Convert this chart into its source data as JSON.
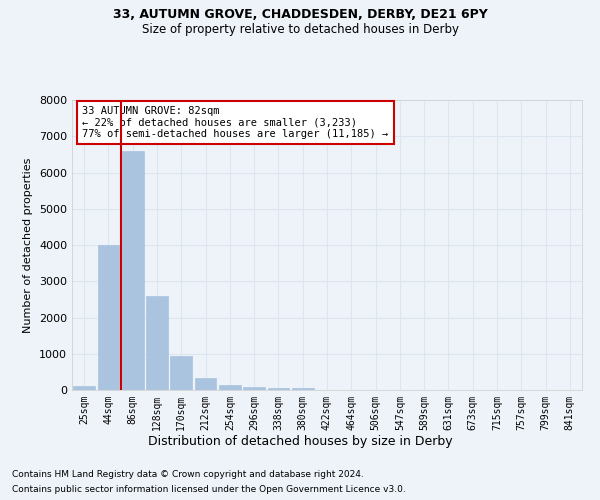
{
  "title1": "33, AUTUMN GROVE, CHADDESDEN, DERBY, DE21 6PY",
  "title2": "Size of property relative to detached houses in Derby",
  "xlabel": "Distribution of detached houses by size in Derby",
  "ylabel": "Number of detached properties",
  "bar_labels": [
    "25sqm",
    "44sqm",
    "86sqm",
    "128sqm",
    "170sqm",
    "212sqm",
    "254sqm",
    "296sqm",
    "338sqm",
    "380sqm",
    "422sqm",
    "464sqm",
    "506sqm",
    "547sqm",
    "589sqm",
    "631sqm",
    "673sqm",
    "715sqm",
    "757sqm",
    "799sqm",
    "841sqm"
  ],
  "bar_values": [
    100,
    4000,
    6600,
    2600,
    950,
    320,
    130,
    90,
    60,
    50,
    0,
    0,
    0,
    0,
    0,
    0,
    0,
    0,
    0,
    0,
    0
  ],
  "bar_color": "#aac4e0",
  "bar_edge_color": "#aac4e0",
  "grid_color": "#dce6f1",
  "vline_color": "#cc0000",
  "annotation_line1": "33 AUTUMN GROVE: 82sqm",
  "annotation_line2": "← 22% of detached houses are smaller (3,233)",
  "annotation_line3": "77% of semi-detached houses are larger (11,185) →",
  "annotation_box_color": "#ffffff",
  "annotation_box_edge": "#cc0000",
  "ylim": [
    0,
    8000
  ],
  "yticks": [
    0,
    1000,
    2000,
    3000,
    4000,
    5000,
    6000,
    7000,
    8000
  ],
  "footer1": "Contains HM Land Registry data © Crown copyright and database right 2024.",
  "footer2": "Contains public sector information licensed under the Open Government Licence v3.0.",
  "bg_color": "#eef3f9"
}
